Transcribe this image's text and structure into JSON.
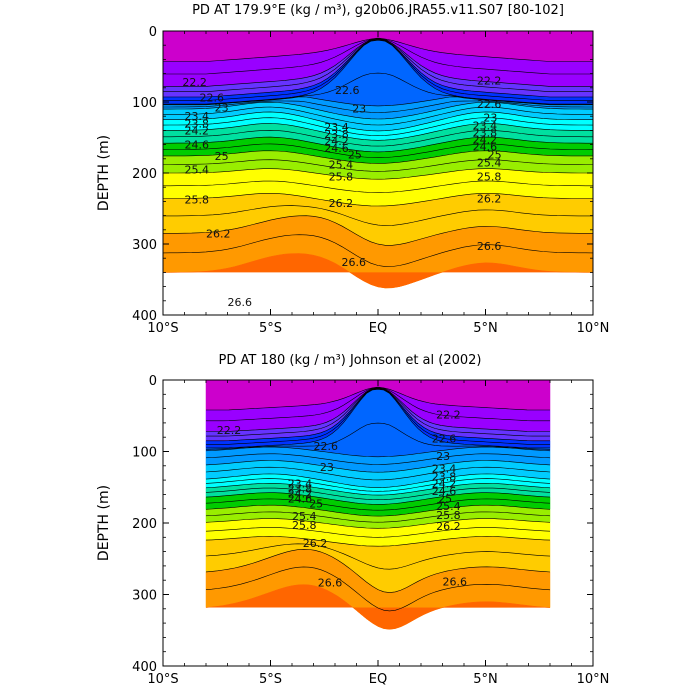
{
  "chart_data": [
    {
      "type": "heatmap",
      "id": "model",
      "title": "PD AT 179.9°E (kg / m³), g20b06.JRA55.v11.S07 [80-102]",
      "ylabel": "DEPTH (m)",
      "xlabel": "",
      "x_tick_labels": [
        "10°S",
        "5°S",
        "EQ",
        "5°N",
        "10°N"
      ],
      "x_ticks": [
        -10,
        -5,
        0,
        5,
        10
      ],
      "xlim": [
        -10,
        10
      ],
      "y_tick_labels": [
        "0",
        "100",
        "200",
        "300",
        "400"
      ],
      "y_ticks": [
        0,
        100,
        200,
        300,
        400
      ],
      "ylim": [
        0,
        400
      ],
      "y_inverted": true,
      "data_extent_lat": [
        -10,
        10
      ],
      "contour_interval": 0.2,
      "contour_levels_range": [
        21.4,
        26.8
      ],
      "colormap": [
        "#cc00cc",
        "#9900ff",
        "#6633ff",
        "#0033ff",
        "#0066ff",
        "#0099ff",
        "#00ccff",
        "#00ffff",
        "#00e0a0",
        "#00cc00",
        "#99ee00",
        "#ffff00",
        "#ffcc00",
        "#ff9900",
        "#ff6600",
        "#ff0000",
        "#cc0000"
      ],
      "contour_labels": [
        {
          "text": "22.2",
          "lat": -9.1,
          "depth": 72
        },
        {
          "text": "22.6",
          "lat": -8.3,
          "depth": 94
        },
        {
          "text": "23",
          "lat": -7.6,
          "depth": 108
        },
        {
          "text": "23.4",
          "lat": -9.0,
          "depth": 120
        },
        {
          "text": "23.8",
          "lat": -9.0,
          "depth": 130
        },
        {
          "text": "24.2",
          "lat": -9.0,
          "depth": 140
        },
        {
          "text": "24.6",
          "lat": -9.0,
          "depth": 160
        },
        {
          "text": "25",
          "lat": -7.6,
          "depth": 176
        },
        {
          "text": "25.4",
          "lat": -9.0,
          "depth": 195
        },
        {
          "text": "25.8",
          "lat": -9.0,
          "depth": 237
        },
        {
          "text": "26.2",
          "lat": -8.0,
          "depth": 285
        },
        {
          "text": "26.6",
          "lat": -7.0,
          "depth": 382
        },
        {
          "text": "22.6",
          "lat": -2.0,
          "depth": 83
        },
        {
          "text": "23",
          "lat": -1.2,
          "depth": 109
        },
        {
          "text": "23.4",
          "lat": -2.5,
          "depth": 135
        },
        {
          "text": "23.8",
          "lat": -2.5,
          "depth": 145
        },
        {
          "text": "24.2",
          "lat": -2.5,
          "depth": 155
        },
        {
          "text": "24.6",
          "lat": -2.5,
          "depth": 165
        },
        {
          "text": "25",
          "lat": -1.4,
          "depth": 174
        },
        {
          "text": "25.4",
          "lat": -2.3,
          "depth": 188
        },
        {
          "text": "25.8",
          "lat": -2.3,
          "depth": 205
        },
        {
          "text": "26.2",
          "lat": -2.3,
          "depth": 242
        },
        {
          "text": "26.6",
          "lat": -1.7,
          "depth": 325
        },
        {
          "text": "22.2",
          "lat": 4.6,
          "depth": 70
        },
        {
          "text": "22.6",
          "lat": 4.6,
          "depth": 103
        },
        {
          "text": "23",
          "lat": 4.9,
          "depth": 122
        },
        {
          "text": "23.4",
          "lat": 4.4,
          "depth": 133
        },
        {
          "text": "23.8",
          "lat": 4.4,
          "depth": 143
        },
        {
          "text": "24.2",
          "lat": 4.4,
          "depth": 153
        },
        {
          "text": "24.6",
          "lat": 4.4,
          "depth": 163
        },
        {
          "text": "25",
          "lat": 5.1,
          "depth": 174
        },
        {
          "text": "25.4",
          "lat": 4.6,
          "depth": 185
        },
        {
          "text": "25.8",
          "lat": 4.6,
          "depth": 205
        },
        {
          "text": "26.2",
          "lat": 4.6,
          "depth": 236
        },
        {
          "text": "26.6",
          "lat": 4.6,
          "depth": 303
        }
      ]
    },
    {
      "type": "heatmap",
      "id": "obs",
      "title": "PD AT 180 (kg / m³) Johnson et al (2002)",
      "ylabel": "DEPTH (m)",
      "xlabel": "",
      "x_tick_labels": [
        "10°S",
        "5°S",
        "EQ",
        "5°N",
        "10°N"
      ],
      "x_ticks": [
        -10,
        -5,
        0,
        5,
        10
      ],
      "xlim": [
        -10,
        10
      ],
      "y_tick_labels": [
        "0",
        "100",
        "200",
        "300",
        "400"
      ],
      "y_ticks": [
        0,
        100,
        200,
        300,
        400
      ],
      "ylim": [
        0,
        400
      ],
      "y_inverted": true,
      "data_extent_lat": [
        -8,
        8
      ],
      "contour_interval": 0.2,
      "contour_levels_range": [
        21.4,
        26.8
      ],
      "colormap": [
        "#cc00cc",
        "#9900ff",
        "#6633ff",
        "#0033ff",
        "#0066ff",
        "#0099ff",
        "#00ccff",
        "#00ffff",
        "#00e0a0",
        "#00cc00",
        "#99ee00",
        "#ffff00",
        "#ffcc00",
        "#ff9900",
        "#ff6600",
        "#ff0000",
        "#cc0000"
      ],
      "contour_labels": [
        {
          "text": "22.2",
          "lat": -7.5,
          "depth": 70
        },
        {
          "text": "22.6",
          "lat": -3.0,
          "depth": 92
        },
        {
          "text": "23",
          "lat": -2.7,
          "depth": 122
        },
        {
          "text": "23.4",
          "lat": -4.2,
          "depth": 145
        },
        {
          "text": "23.8",
          "lat": -4.2,
          "depth": 152
        },
        {
          "text": "24.2",
          "lat": -4.2,
          "depth": 159
        },
        {
          "text": "24.6",
          "lat": -4.2,
          "depth": 166
        },
        {
          "text": "25",
          "lat": -3.2,
          "depth": 173
        },
        {
          "text": "25.4",
          "lat": -4.0,
          "depth": 190
        },
        {
          "text": "25.8",
          "lat": -4.0,
          "depth": 203
        },
        {
          "text": "26.2",
          "lat": -3.5,
          "depth": 228
        },
        {
          "text": "26.6",
          "lat": -2.8,
          "depth": 283
        },
        {
          "text": "22.2",
          "lat": 2.7,
          "depth": 48
        },
        {
          "text": "22.6",
          "lat": 2.5,
          "depth": 82
        },
        {
          "text": "23",
          "lat": 2.7,
          "depth": 106
        },
        {
          "text": "23.4",
          "lat": 2.5,
          "depth": 124
        },
        {
          "text": "23.8",
          "lat": 2.5,
          "depth": 135
        },
        {
          "text": "24.2",
          "lat": 2.5,
          "depth": 145
        },
        {
          "text": "24.6",
          "lat": 2.5,
          "depth": 155
        },
        {
          "text": "25",
          "lat": 2.8,
          "depth": 166
        },
        {
          "text": "25.4",
          "lat": 2.7,
          "depth": 176
        },
        {
          "text": "25.8",
          "lat": 2.7,
          "depth": 189
        },
        {
          "text": "26.2",
          "lat": 2.7,
          "depth": 204
        },
        {
          "text": "26.6",
          "lat": 3.0,
          "depth": 282
        }
      ]
    }
  ]
}
